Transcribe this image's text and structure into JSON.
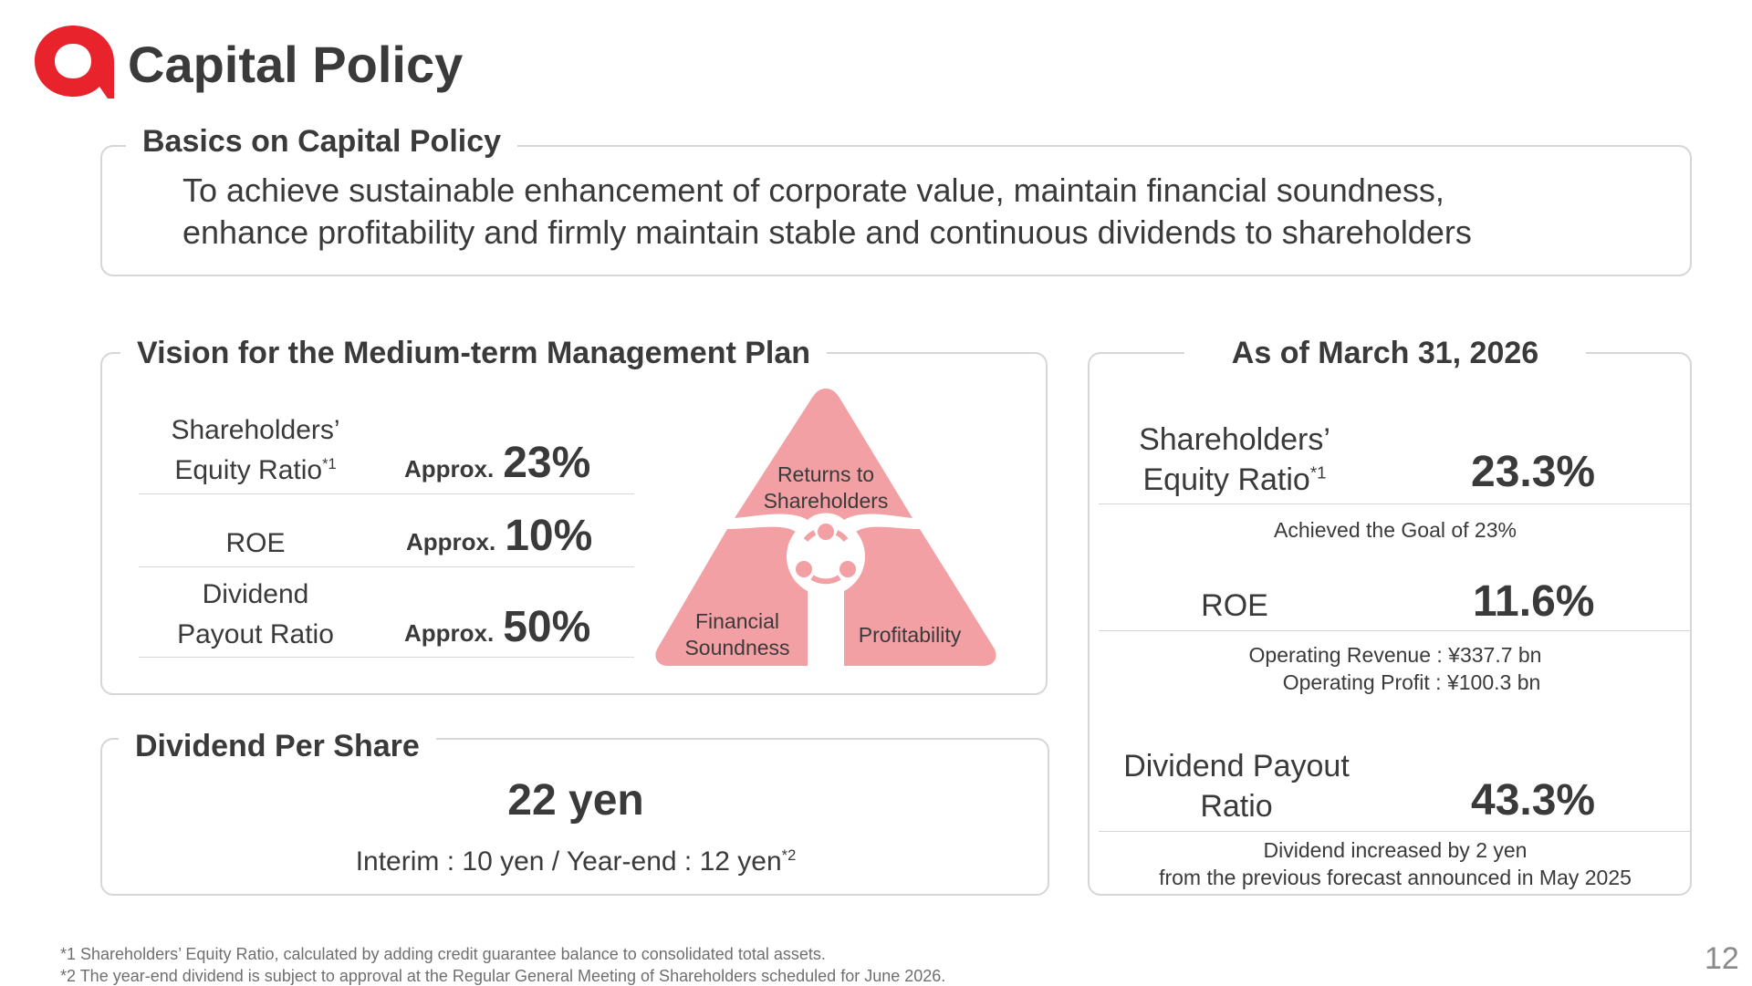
{
  "header": {
    "title": "Capital Policy",
    "logo_icon": "red-ring-logo",
    "brand_color": "#e8232b"
  },
  "basics": {
    "title": "Basics on Capital Policy",
    "line1": "To achieve sustainable enhancement of corporate value, maintain financial soundness,",
    "line2": "enhance profitability and firmly maintain stable and continuous dividends to shareholders"
  },
  "vision": {
    "title": "Vision for the Medium-term Management Plan",
    "approx_label": "Approx.",
    "rows": [
      {
        "label_line1": "Shareholders’",
        "label_line2": "Equity Ratio",
        "footnote_mark": "*1",
        "value": "23%"
      },
      {
        "label_line1": "ROE",
        "value": "10%"
      },
      {
        "label_line1": "Dividend",
        "label_line2": "Payout Ratio",
        "value": "50%"
      }
    ],
    "diagram": {
      "top_line1": "Returns to",
      "top_line2": "Shareholders",
      "left_line1": "Financial",
      "left_line2": "Soundness",
      "right": "Profitability",
      "center_icon": "cycle-icon",
      "fill_color": "#f2a0a4"
    }
  },
  "dividend": {
    "title": "Dividend Per Share",
    "value": "22 yen",
    "detail": "Interim : 10 yen / Year-end : 12 yen",
    "footnote_mark": "*2"
  },
  "results": {
    "title": "As of March 31, 2026",
    "equity_label_line1": "Shareholders’",
    "equity_label_line2": "Equity Ratio",
    "equity_mark": "*1",
    "equity_value": "23.3%",
    "equity_note": "Achieved the Goal of 23%",
    "roe_label": "ROE",
    "roe_value": "11.6%",
    "roe_note_line1": "Operating Revenue : ¥337.7 bn",
    "roe_note_line2": "Operating Profit : ¥100.3 bn",
    "payout_label_line1": "Dividend Payout",
    "payout_label_line2": "Ratio",
    "payout_value": "43.3%",
    "payout_note_line1": "Dividend increased by 2 yen",
    "payout_note_line2": "from the previous forecast announced in May 2025"
  },
  "footer": {
    "note1": "*1 Shareholders’ Equity Ratio, calculated by adding credit guarantee balance to consolidated total assets.",
    "note2": "*2 The year-end dividend is subject to approval at the Regular General Meeting of Shareholders scheduled for June 2026.",
    "page_number": "12"
  }
}
